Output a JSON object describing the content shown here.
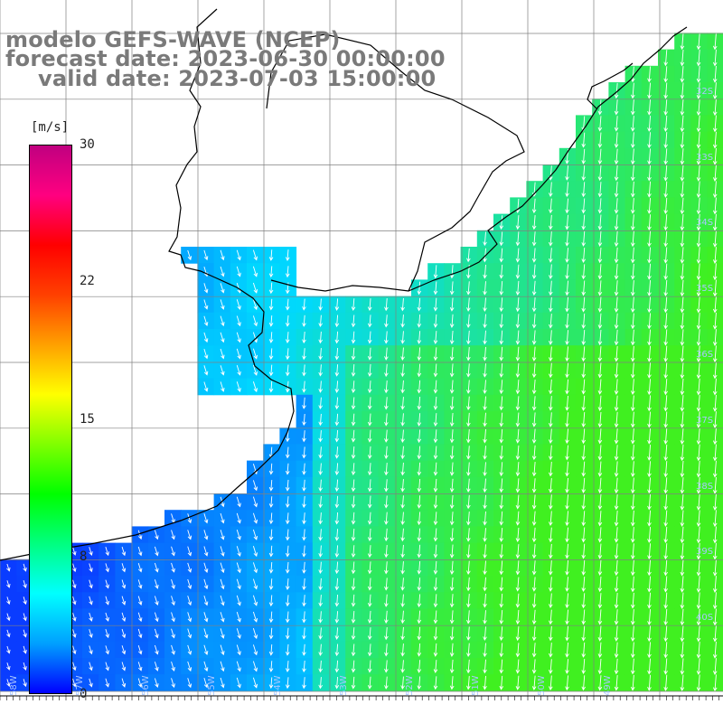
{
  "title": {
    "line1": "modelo GEFS-WAVE (NCEP)",
    "line2": "forecast date: 2023-06-30 00:00:00",
    "line3": "valid date: 2023-07-03 15:00:00"
  },
  "colorbar": {
    "unit": "[m/s]",
    "ticks": [
      "30",
      "22",
      "15",
      "8",
      "0"
    ],
    "colors": [
      "#0000ff",
      "#00a0ff",
      "#00ffff",
      "#00ff80",
      "#00ff00",
      "#80ff00",
      "#ffff00",
      "#ffa000",
      "#ff4000",
      "#ff0000",
      "#ff0080",
      "#c00080"
    ]
  },
  "lat_labels": [
    "32S",
    "33S",
    "34S",
    "35S",
    "36S",
    "37S",
    "38S",
    "39S",
    "40S"
  ],
  "lon_labels": [
    "58W",
    "57W",
    "56W",
    "55W",
    "54W",
    "53W",
    "52W",
    "51W",
    "50W",
    "49W"
  ],
  "map": {
    "field": "wind speed",
    "ocean_speed_low_color": "#0a3cff",
    "ocean_speed_mid_color": "#00d8ff",
    "ocean_speed_high_color": "#40f020",
    "arrow_color": "#ffffff",
    "coastline_color": "#000000",
    "graticule_color": "#808080"
  }
}
